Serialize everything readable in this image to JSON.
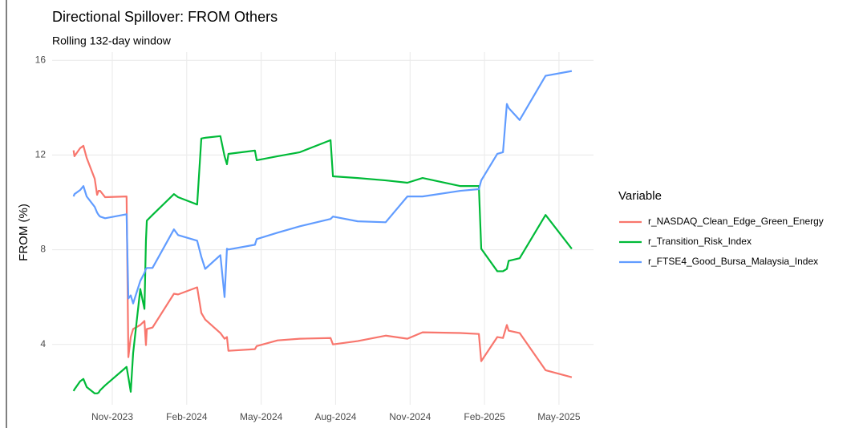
{
  "chart_data": {
    "type": "line",
    "title": "Directional Spillover: FROM Others",
    "subtitle": "Rolling 132-day window",
    "y_label": "FROM (%)",
    "legend_title": "Variable",
    "legend": "right",
    "grid": true,
    "x": [
      2023.703,
      2023.706,
      2023.725,
      2023.736,
      2023.747,
      2023.774,
      2023.782,
      2023.787,
      2023.792,
      2023.809,
      2023.881,
      2023.887,
      2023.895,
      2023.903,
      2023.927,
      2023.941,
      2023.946,
      2023.949,
      2023.968,
      2024.04,
      2024.054,
      2024.118,
      2024.132,
      2024.145,
      2024.196,
      2024.21,
      2024.218,
      2024.223,
      2024.312,
      2024.318,
      2024.388,
      2024.463,
      2024.566,
      2024.574,
      2024.657,
      2024.751,
      2024.824,
      2024.875,
      2025.002,
      2025.064,
      2025.072,
      2025.126,
      2025.145,
      2025.158,
      2025.164,
      2025.201,
      2025.288,
      2025.376
    ],
    "series": [
      {
        "name": "r_NASDAQ_Clean_Edge_Green_Energy",
        "color": "#f8766d",
        "values": [
          12.2,
          11.95,
          12.29,
          12.39,
          11.88,
          11.0,
          10.32,
          10.49,
          10.49,
          10.22,
          10.25,
          3.46,
          4.31,
          4.65,
          4.82,
          4.99,
          3.97,
          4.65,
          4.71,
          6.14,
          6.11,
          6.41,
          5.33,
          5.05,
          4.48,
          4.24,
          4.31,
          3.73,
          3.8,
          3.93,
          4.17,
          4.24,
          4.27,
          4.0,
          4.14,
          4.37,
          4.24,
          4.51,
          4.48,
          4.44,
          3.29,
          4.31,
          4.27,
          4.82,
          4.58,
          4.48,
          2.91,
          2.61
        ]
      },
      {
        "name": "r_Transition_Risk_Index",
        "color": "#00ba38",
        "values": [
          2.03,
          2.1,
          2.44,
          2.54,
          2.2,
          1.93,
          1.93,
          1.96,
          2.06,
          2.27,
          3.05,
          2.61,
          2.0,
          3.63,
          6.34,
          5.5,
          8.38,
          9.23,
          9.47,
          10.35,
          10.22,
          9.91,
          12.7,
          12.73,
          12.8,
          11.95,
          11.61,
          12.05,
          12.19,
          11.78,
          11.95,
          12.12,
          12.63,
          11.1,
          11.03,
          10.93,
          10.83,
          11.03,
          10.69,
          10.69,
          8.04,
          7.09,
          7.09,
          7.19,
          7.53,
          7.64,
          9.47,
          8.04
        ]
      },
      {
        "name": "r_FTSE4_Good_Bursa_Malaysia_Index",
        "color": "#619cff",
        "values": [
          10.25,
          10.35,
          10.52,
          10.69,
          10.25,
          9.81,
          9.57,
          9.47,
          9.4,
          9.33,
          9.5,
          5.94,
          6.07,
          5.73,
          6.68,
          7.02,
          7.19,
          7.23,
          7.23,
          8.86,
          8.62,
          8.38,
          7.7,
          7.19,
          7.77,
          6.0,
          8.04,
          8.01,
          8.21,
          8.45,
          8.72,
          8.99,
          9.3,
          9.4,
          9.2,
          9.16,
          10.25,
          10.25,
          10.49,
          10.56,
          10.93,
          12.05,
          12.12,
          14.16,
          13.99,
          13.48,
          15.35,
          15.55
        ]
      }
    ],
    "xlim": [
      2023.631,
      2025.449
    ],
    "xticks": [
      {
        "value": 2023.833,
        "label": "Nov-2023"
      },
      {
        "value": 2024.083,
        "label": "Feb-2024"
      },
      {
        "value": 2024.333,
        "label": "May-2024"
      },
      {
        "value": 2024.583,
        "label": "Aug-2024"
      },
      {
        "value": 2024.833,
        "label": "Nov-2024"
      },
      {
        "value": 2025.083,
        "label": "Feb-2025"
      },
      {
        "value": 2025.333,
        "label": "May-2025"
      }
    ],
    "ylim": [
      1.45,
      16.35
    ],
    "yticks": [
      4,
      8,
      12,
      16
    ]
  }
}
